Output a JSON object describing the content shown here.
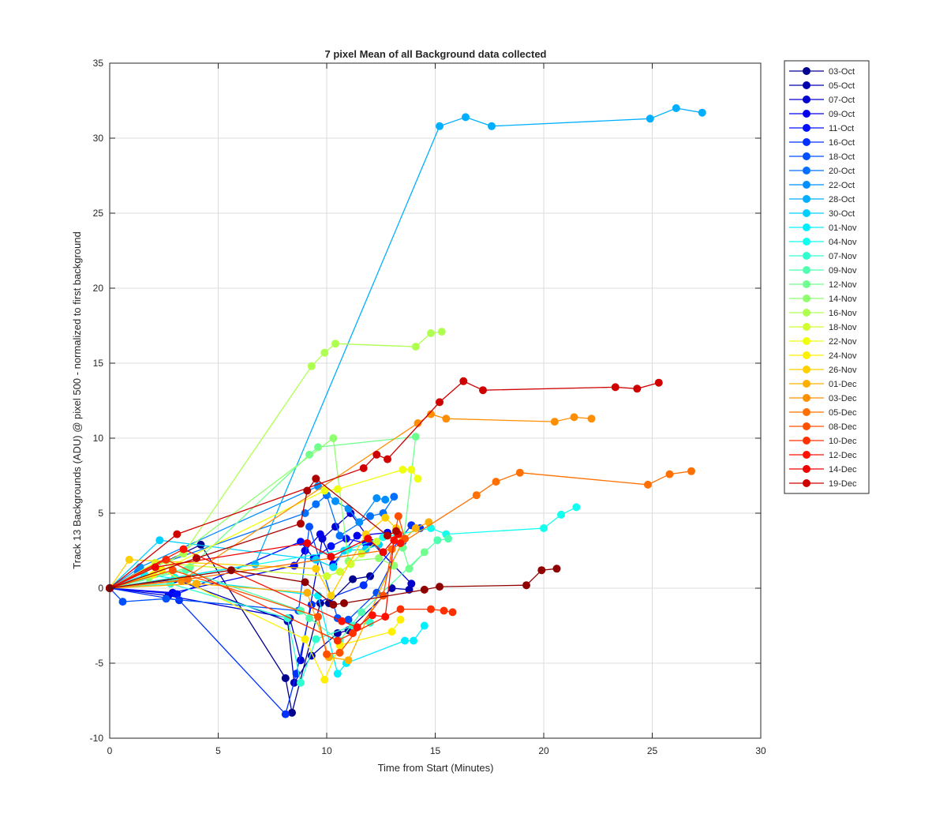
{
  "chart_data": {
    "type": "line",
    "title": "7 pixel Mean of all Background data collected",
    "xlabel": "Time from Start (Minutes)",
    "ylabel": "Track 13 Backgrounds (ADU) @ pixel 500 - normalized to first background",
    "xlim": [
      0,
      30
    ],
    "ylim": [
      -10,
      35
    ],
    "xticks": [
      "0",
      "5",
      "10",
      "15",
      "20",
      "25",
      "30"
    ],
    "yticks": [
      "-10",
      "-5",
      "0",
      "5",
      "10",
      "15",
      "20",
      "25",
      "30",
      "35"
    ],
    "grid": true,
    "legend_position": "outside-top-right",
    "series": [
      {
        "name": "03-Oct",
        "color": "#00008F",
        "x": [
          0,
          4.2,
          8.1,
          8.4,
          9.7,
          10.1,
          11.2,
          12.0
        ],
        "y": [
          0,
          2.9,
          -6.0,
          -8.3,
          -1.0,
          -1.0,
          0.6,
          0.8
        ]
      },
      {
        "name": "05-Oct",
        "color": "#0000AF",
        "x": [
          0,
          3.0,
          8.2,
          8.5,
          9.3,
          10.5,
          11.0,
          13.0,
          13.8
        ],
        "y": [
          0,
          0.6,
          -2.2,
          -6.3,
          -4.5,
          -3.0,
          -2.8,
          0.0,
          -0.1
        ]
      },
      {
        "name": "07-Oct",
        "color": "#0000CF",
        "x": [
          0,
          2.7,
          8.3,
          8.8,
          9.8,
          10.4,
          11.1,
          12.1,
          13.9
        ],
        "y": [
          0,
          -0.5,
          -2.0,
          -4.8,
          3.3,
          4.1,
          5.0,
          3.0,
          0.3
        ]
      },
      {
        "name": "09-Oct",
        "color": "#0000EF",
        "x": [
          0,
          2.9,
          8.5,
          9.0,
          9.7,
          10.3,
          11.4,
          12.8
        ],
        "y": [
          0,
          -0.3,
          1.5,
          2.5,
          3.6,
          1.6,
          3.5,
          3.7
        ]
      },
      {
        "name": "11-Oct",
        "color": "#0010FF",
        "x": [
          0,
          3.1,
          8.8,
          9.4,
          10.2,
          10.9,
          11.8
        ],
        "y": [
          0,
          -0.4,
          3.1,
          2.0,
          2.8,
          3.3,
          3.0
        ]
      },
      {
        "name": "16-Oct",
        "color": "#0030FF",
        "x": [
          0,
          3.2,
          8.1,
          8.6,
          9.3,
          11.7,
          13.9,
          14.3
        ],
        "y": [
          0,
          -0.8,
          -8.4,
          -5.7,
          -1.1,
          0.2,
          4.2,
          4.0
        ]
      },
      {
        "name": "18-Oct",
        "color": "#0050FF",
        "x": [
          0,
          0.6,
          2.6,
          8.7,
          9.2,
          10.5,
          11.0,
          12.3,
          13.5
        ],
        "y": [
          0,
          -0.9,
          -0.7,
          -1.5,
          4.1,
          -2.0,
          -2.1,
          -0.3,
          3.1
        ]
      },
      {
        "name": "20-Oct",
        "color": "#0070FF",
        "x": [
          0,
          1.3,
          9.0,
          9.5,
          10.0,
          10.6,
          12.0,
          12.6,
          13.1
        ],
        "y": [
          0,
          1.1,
          5.0,
          5.6,
          6.2,
          3.5,
          4.8,
          5.0,
          6.1
        ]
      },
      {
        "name": "22-Oct",
        "color": "#008FFF",
        "x": [
          0,
          1.4,
          9.6,
          10.4,
          11.0,
          11.5,
          12.3,
          12.7
        ],
        "y": [
          0,
          1.4,
          6.8,
          5.8,
          5.3,
          4.4,
          6.0,
          5.9
        ]
      },
      {
        "name": "28-Oct",
        "color": "#00AFFF",
        "x": [
          0,
          6.7,
          15.2,
          16.4,
          17.6,
          24.9,
          26.1,
          27.3
        ],
        "y": [
          0,
          1.6,
          30.8,
          31.4,
          30.8,
          31.3,
          32.0,
          31.7
        ]
      },
      {
        "name": "30-Oct",
        "color": "#00CFFF",
        "x": [
          0,
          2.3,
          9.5,
          10.3,
          10.8,
          11.8,
          12.4
        ],
        "y": [
          0,
          3.2,
          1.9,
          1.4,
          2.5,
          2.6,
          2.9
        ]
      },
      {
        "name": "01-Nov",
        "color": "#00EFFF",
        "x": [
          0,
          1.6,
          9.6,
          10.5,
          10.9,
          13.6,
          14.0,
          14.5
        ],
        "y": [
          0,
          0.9,
          -0.5,
          -5.7,
          -5.0,
          -3.5,
          -3.5,
          -2.5
        ]
      },
      {
        "name": "04-Nov",
        "color": "#10FFEF",
        "x": [
          0,
          3.0,
          11.0,
          12.6,
          14.8,
          15.5,
          20.0,
          20.8,
          21.5
        ],
        "y": [
          0,
          0.7,
          2.6,
          3.4,
          4.0,
          3.6,
          4.0,
          4.9,
          5.4
        ]
      },
      {
        "name": "07-Nov",
        "color": "#30FFCF",
        "x": [
          0,
          2.8,
          8.2,
          8.8,
          9.5,
          11.2,
          12.0
        ],
        "y": [
          0,
          0.3,
          -2.0,
          -6.3,
          -3.4,
          -2.5,
          -2.3
        ]
      },
      {
        "name": "09-Nov",
        "color": "#50FFAF",
        "x": [
          0,
          3.5,
          8.8,
          9.2,
          10.6,
          11.6,
          15.1,
          15.6
        ],
        "y": [
          0,
          1.2,
          -1.5,
          -2.0,
          -3.5,
          -1.6,
          3.2,
          3.3
        ]
      },
      {
        "name": "12-Nov",
        "color": "#70FF8F",
        "x": [
          0,
          3.7,
          9.2,
          9.6,
          14.1,
          13.5,
          13.8,
          14.5
        ],
        "y": [
          0,
          1.4,
          8.9,
          9.4,
          10.1,
          2.7,
          1.3,
          2.4
        ]
      },
      {
        "name": "14-Nov",
        "color": "#8FFF70",
        "x": [
          0,
          1.8,
          10.3,
          11.0,
          12.4,
          13.1
        ],
        "y": [
          0,
          0.7,
          10.0,
          1.8,
          2.0,
          1.5
        ]
      },
      {
        "name": "16-Nov",
        "color": "#AFFF50",
        "x": [
          0,
          3.4,
          9.3,
          9.9,
          10.4,
          14.1,
          14.8,
          15.3
        ],
        "y": [
          0,
          2.3,
          14.8,
          15.7,
          16.3,
          16.1,
          17.0,
          17.1
        ]
      },
      {
        "name": "18-Nov",
        "color": "#CFFF30",
        "x": [
          0,
          2.1,
          10.0,
          10.6,
          11.1,
          11.6,
          12.3
        ],
        "y": [
          0,
          1.7,
          0.8,
          1.1,
          1.6,
          2.3,
          3.1
        ]
      },
      {
        "name": "22-Nov",
        "color": "#EFFF10",
        "x": [
          0,
          2.0,
          9.9,
          10.5,
          13.5,
          13.9,
          14.2
        ],
        "y": [
          0,
          0.9,
          6.5,
          6.6,
          7.9,
          7.9,
          7.3
        ]
      },
      {
        "name": "24-Nov",
        "color": "#FFEF00",
        "x": [
          0,
          2.4,
          9.0,
          9.9,
          10.6,
          13.0,
          13.4
        ],
        "y": [
          0,
          1.2,
          -3.4,
          -6.1,
          -3.8,
          -2.9,
          -2.1
        ]
      },
      {
        "name": "26-Nov",
        "color": "#FFCF00",
        "x": [
          0,
          0.9,
          9.5,
          10.2,
          11.8,
          12.7,
          13.2
        ],
        "y": [
          0,
          1.9,
          1.3,
          -0.5,
          3.6,
          4.7,
          4.0
        ]
      },
      {
        "name": "01-Dec",
        "color": "#FFAF00",
        "x": [
          0,
          4.0,
          9.1,
          10.1,
          11.0,
          13.5,
          14.1,
          14.7
        ],
        "y": [
          0,
          0.3,
          -0.3,
          -4.6,
          -4.8,
          3.2,
          4.0,
          4.4
        ]
      },
      {
        "name": "03-Dec",
        "color": "#FF8F00",
        "x": [
          0,
          3.3,
          14.2,
          14.8,
          15.5,
          20.5,
          21.4,
          22.2
        ],
        "y": [
          0,
          0.5,
          11.0,
          11.6,
          11.3,
          11.1,
          11.4,
          11.3
        ]
      },
      {
        "name": "05-Dec",
        "color": "#FF7000",
        "x": [
          0,
          3.6,
          13.0,
          16.9,
          17.8,
          18.9,
          24.8,
          25.8,
          26.8
        ],
        "y": [
          0,
          0.6,
          2.6,
          6.2,
          7.1,
          7.7,
          6.9,
          7.6,
          7.8
        ]
      },
      {
        "name": "08-Dec",
        "color": "#FF5000",
        "x": [
          0,
          2.9,
          9.6,
          10.0,
          10.6,
          12.6,
          13.3,
          13.6
        ],
        "y": [
          0,
          1.2,
          -1.9,
          -4.4,
          -4.3,
          -0.5,
          4.8,
          3.3
        ]
      },
      {
        "name": "10-Dec",
        "color": "#FF3000",
        "x": [
          0,
          2.6,
          10.5,
          11.2,
          13.4,
          14.8,
          15.4,
          15.8
        ],
        "y": [
          0,
          1.9,
          -3.5,
          -3.0,
          -1.4,
          -1.4,
          -1.5,
          -1.6
        ]
      },
      {
        "name": "12-Dec",
        "color": "#FF1000",
        "x": [
          0,
          3.4,
          10.7,
          11.4,
          12.1,
          12.7,
          13.1,
          13.4
        ],
        "y": [
          0,
          2.6,
          -2.2,
          -2.6,
          -1.8,
          -1.9,
          3.2,
          3.0
        ]
      },
      {
        "name": "14-Dec",
        "color": "#EF0000",
        "x": [
          0,
          2.1,
          9.1,
          10.2,
          11.9,
          12.6,
          13.3
        ],
        "y": [
          0,
          1.4,
          3.0,
          2.1,
          3.3,
          2.4,
          3.6
        ]
      },
      {
        "name": "19-Dec",
        "color": "#CF0000",
        "x": [
          0,
          3.1,
          11.7,
          12.3,
          12.8,
          15.2,
          16.3,
          17.2,
          23.3,
          24.3,
          25.3
        ],
        "y": [
          0,
          3.6,
          8.0,
          8.9,
          8.6,
          12.4,
          13.8,
          13.2,
          13.4,
          13.3,
          13.7
        ]
      },
      {
        "name": "",
        "color": "#AF0000",
        "x": [
          0,
          4.0,
          8.8,
          9.1,
          9.5,
          12.8,
          13.2
        ],
        "y": [
          0,
          2.0,
          4.3,
          6.5,
          7.3,
          3.5,
          3.8
        ]
      },
      {
        "name": "",
        "color": "#8F0000",
        "x": [
          0,
          5.6,
          9.0,
          10.3,
          10.8,
          14.5,
          15.2,
          19.2,
          19.9,
          20.6
        ],
        "y": [
          0,
          1.2,
          0.4,
          -1.1,
          -1.0,
          -0.1,
          0.1,
          0.2,
          1.2,
          1.3
        ]
      }
    ]
  }
}
